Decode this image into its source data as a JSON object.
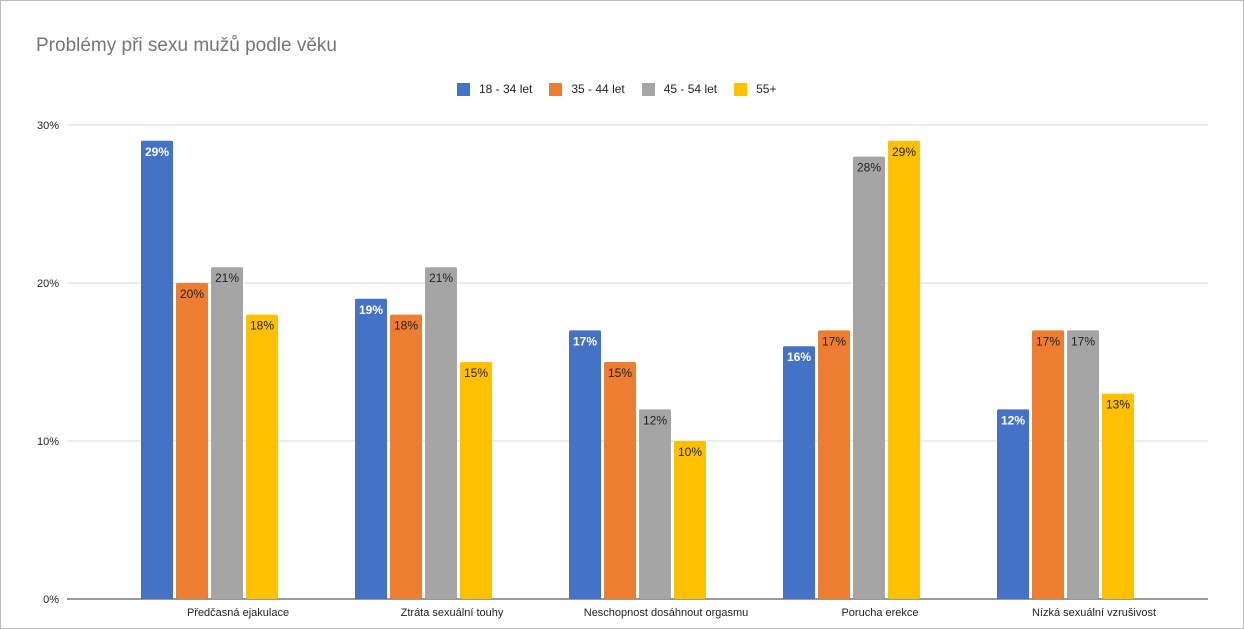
{
  "chart_data": {
    "type": "bar",
    "title": "Problémy při sexu mužů podle věku",
    "xlabel": "",
    "ylabel": "",
    "categories": [
      "Předčasná ejakulace",
      "Ztráta sexuální touhy",
      "Neschopnost dosáhnout orgasmu",
      "Porucha erekce",
      "Nízká sexuální vzrušivost"
    ],
    "series": [
      {
        "name": "18 - 34 let",
        "color": "#4472c4",
        "values": [
          29,
          19,
          17,
          16,
          12
        ],
        "labels": [
          "29%",
          "19%",
          "17%",
          "16%",
          "12%"
        ]
      },
      {
        "name": "35 - 44 let",
        "color": "#ed7d31",
        "values": [
          20,
          18,
          15,
          17,
          17
        ],
        "labels": [
          "20%",
          "18%",
          "15%",
          "17%",
          "17%"
        ]
      },
      {
        "name": "45 - 54 let",
        "color": "#a5a5a5",
        "values": [
          21,
          21,
          12,
          28,
          17
        ],
        "labels": [
          "21%",
          "21%",
          "12%",
          "28%",
          "17%"
        ]
      },
      {
        "name": "55+",
        "color": "#ffc000",
        "values": [
          18,
          15,
          10,
          29,
          13
        ],
        "labels": [
          "18%",
          "15%",
          "10%",
          "29%",
          "13%"
        ]
      }
    ],
    "ylim": [
      0,
      30
    ],
    "yticks": [
      0,
      10,
      20,
      30
    ],
    "ytick_labels": [
      "0%",
      "10%",
      "20%",
      "30%"
    ],
    "grid": true,
    "legend_position": "top-center"
  }
}
